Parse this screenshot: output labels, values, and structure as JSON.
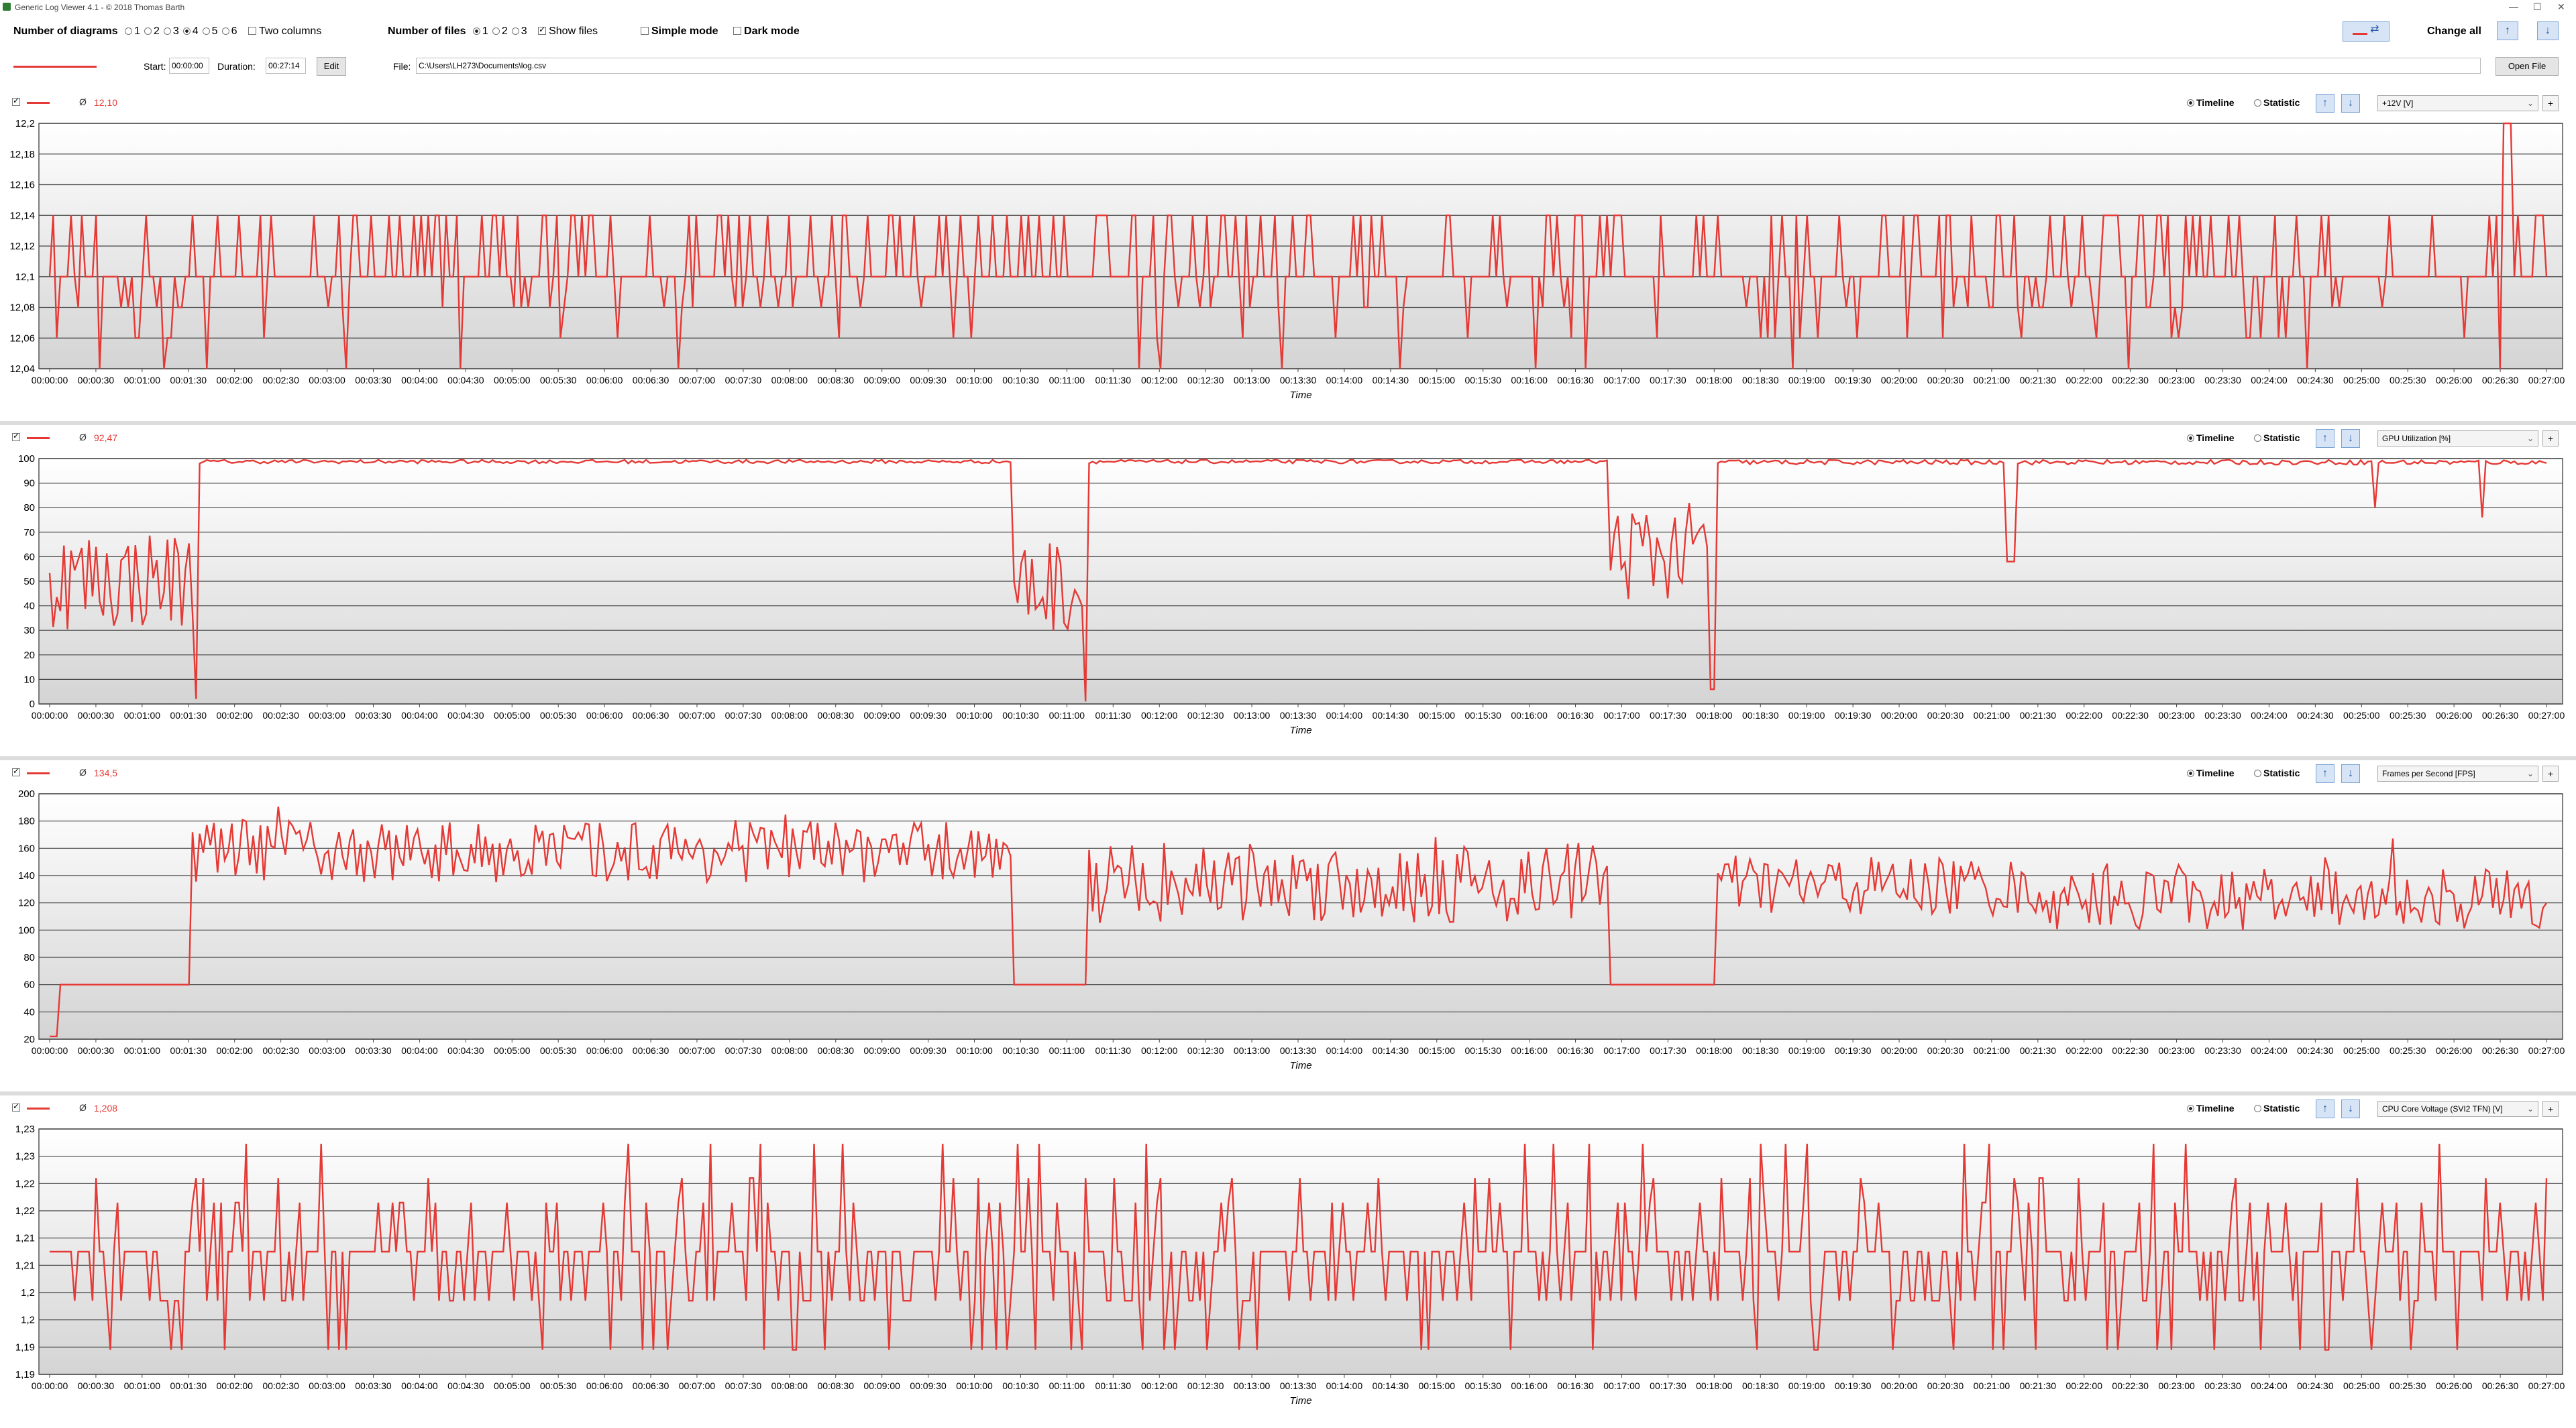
{
  "window": {
    "title": "Generic Log Viewer 4.1 - © 2018 Thomas Barth"
  },
  "toolbar": {
    "num_diagrams_label": "Number of diagrams",
    "diagram_options": [
      "1",
      "2",
      "3",
      "4",
      "5",
      "6"
    ],
    "diagram_selected": "4",
    "two_columns_label": "Two columns",
    "num_files_label": "Number of files",
    "file_options": [
      "1",
      "2",
      "3"
    ],
    "file_selected": "1",
    "show_files_label": "Show files",
    "simple_mode_label": "Simple mode",
    "dark_mode_label": "Dark mode",
    "change_all_label": "Change all"
  },
  "file_row": {
    "start_label": "Start:",
    "start_value": "00:00:00",
    "duration_label": "Duration:",
    "duration_value": "00:27:14",
    "edit_label": "Edit",
    "file_label": "File:",
    "file_path": "C:\\Users\\LH273\\Documents\\log.csv",
    "open_label": "Open File"
  },
  "accent_color": "#e53935",
  "x_axis": {
    "label": "Time",
    "ticks": [
      "00:00:00",
      "00:00:30",
      "00:01:00",
      "00:01:30",
      "00:02:00",
      "00:02:30",
      "00:03:00",
      "00:03:30",
      "00:04:00",
      "00:04:30",
      "00:05:00",
      "00:05:30",
      "00:06:00",
      "00:06:30",
      "00:07:00",
      "00:07:30",
      "00:08:00",
      "00:08:30",
      "00:09:00",
      "00:09:30",
      "00:10:00",
      "00:10:30",
      "00:11:00",
      "00:11:30",
      "00:12:00",
      "00:12:30",
      "00:13:00",
      "00:13:30",
      "00:14:00",
      "00:14:30",
      "00:15:00",
      "00:15:30",
      "00:16:00",
      "00:16:30",
      "00:17:00",
      "00:17:30",
      "00:18:00",
      "00:18:30",
      "00:19:00",
      "00:19:30",
      "00:20:00",
      "00:20:30",
      "00:21:00",
      "00:21:30",
      "00:22:00",
      "00:22:30",
      "00:23:00",
      "00:23:30",
      "00:24:00",
      "00:24:30",
      "00:25:00",
      "00:25:30",
      "00:26:00",
      "00:26:30",
      "00:27:00"
    ]
  },
  "panels": [
    {
      "avg": "12,10",
      "timeline": "Timeline",
      "statistic": "Statistic",
      "sensor": "+12V [V]",
      "yticks": [
        "12,2",
        "12,18",
        "12,16",
        "12,14",
        "12,12",
        "12,1",
        "12,08",
        "12,06",
        "12,04"
      ]
    },
    {
      "avg": "92,47",
      "timeline": "Timeline",
      "statistic": "Statistic",
      "sensor": "GPU Utilization [%]",
      "yticks": [
        "100",
        "90",
        "80",
        "70",
        "60",
        "50",
        "40",
        "30",
        "20",
        "10",
        "0"
      ]
    },
    {
      "avg": "134,5",
      "timeline": "Timeline",
      "statistic": "Statistic",
      "sensor": "Frames per Second [FPS]",
      "yticks": [
        "200",
        "180",
        "160",
        "140",
        "120",
        "100",
        "80",
        "60",
        "40",
        "20"
      ]
    },
    {
      "avg": "1,208",
      "timeline": "Timeline",
      "statistic": "Statistic",
      "sensor": "CPU Core Voltage (SVI2 TFN) [V]",
      "yticks": [
        "1,23",
        "1,23",
        "1,22",
        "1,22",
        "1,21",
        "1,21",
        "1,2",
        "1,2",
        "1,19",
        "1,19"
      ]
    }
  ],
  "chart_data": [
    {
      "type": "line",
      "ylabel": "+12V [V]",
      "ylim": [
        12.04,
        12.2
      ],
      "xlim_seconds": [
        0,
        1634
      ],
      "pattern": "oscillates between 12.10 and 12.14 with dips to 12.04-12.06; spike to 12.20 near 00:26:45"
    },
    {
      "type": "line",
      "ylabel": "GPU Utilization [%]",
      "ylim": [
        0,
        100
      ],
      "xlim_seconds": [
        0,
        1634
      ],
      "segments": [
        {
          "from": "00:00:00",
          "to": "00:01:35",
          "level": "30-70"
        },
        {
          "from": "00:01:35",
          "to": "00:10:30",
          "level": "99"
        },
        {
          "from": "00:10:30",
          "to": "00:11:20",
          "level": "30-60"
        },
        {
          "from": "00:11:20",
          "to": "00:17:00",
          "level": "99"
        },
        {
          "from": "00:17:00",
          "to": "00:18:10",
          "level": "45-90"
        },
        {
          "from": "00:18:10",
          "to": "00:27:14",
          "level": "99"
        }
      ]
    },
    {
      "type": "line",
      "ylabel": "Frames per Second [FPS]",
      "ylim": [
        20,
        200
      ],
      "xlim_seconds": [
        0,
        1634
      ],
      "segments": [
        {
          "from": "00:00:05",
          "to": "00:01:30",
          "level": "60"
        },
        {
          "from": "00:01:35",
          "to": "00:10:30",
          "level": "140-200"
        },
        {
          "from": "00:10:30",
          "to": "00:11:20",
          "level": "60"
        },
        {
          "from": "00:11:20",
          "to": "00:17:00",
          "level": "100-190"
        },
        {
          "from": "00:17:00",
          "to": "00:18:10",
          "level": "60"
        },
        {
          "from": "00:18:10",
          "to": "00:27:14",
          "level": "100-180"
        }
      ]
    },
    {
      "type": "line",
      "ylabel": "CPU Core Voltage (SVI2 TFN) [V]",
      "ylim": [
        1.185,
        1.235
      ],
      "xlim_seconds": [
        0,
        1634
      ],
      "pattern": "mostly 1.21 with frequent drops to 1.20-1.19 and spikes to 1.22-1.235"
    }
  ]
}
